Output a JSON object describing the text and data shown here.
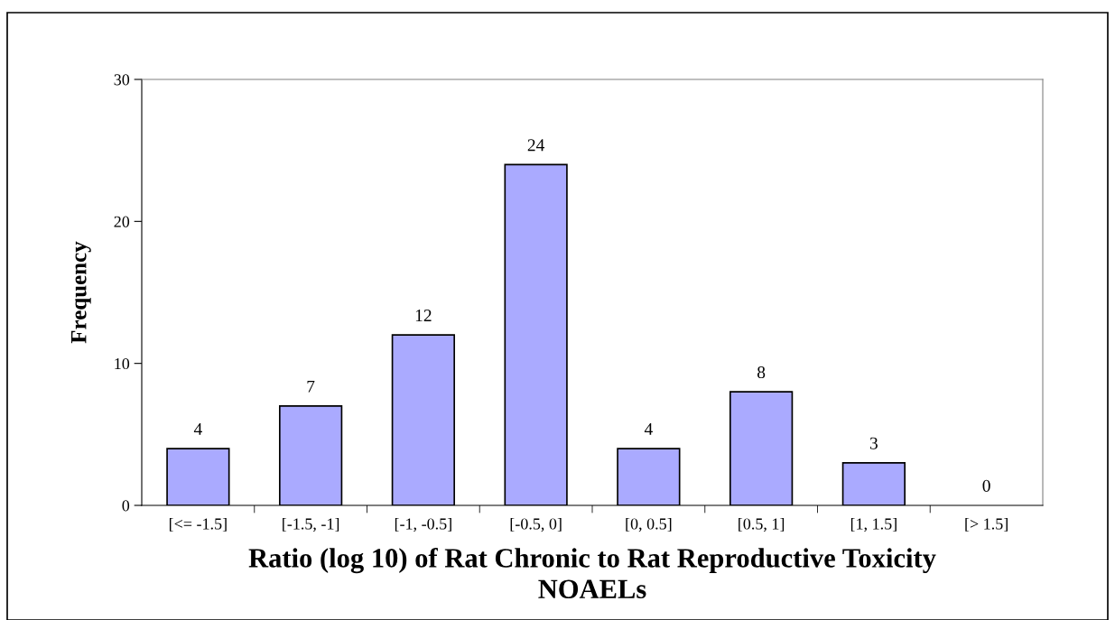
{
  "chart_data": {
    "type": "bar",
    "categories": [
      "[<= -1.5]",
      "[-1.5, -1]",
      "[-1, -0.5]",
      "[-0.5, 0]",
      "[0, 0.5]",
      "[0.5, 1]",
      "[1, 1.5]",
      "[> 1.5]"
    ],
    "values": [
      4,
      7,
      12,
      24,
      4,
      8,
      3,
      0
    ],
    "color": "#aaaaff",
    "xlabel": "Ratio (log 10) of Rat Chronic to Rat Reproductive Toxicity\nNOAELs",
    "ylabel": "Frequency",
    "ylim": [
      0,
      30
    ],
    "yticks": [
      0,
      10,
      20,
      30
    ],
    "data_labels": true,
    "grid": false,
    "legend": false
  }
}
